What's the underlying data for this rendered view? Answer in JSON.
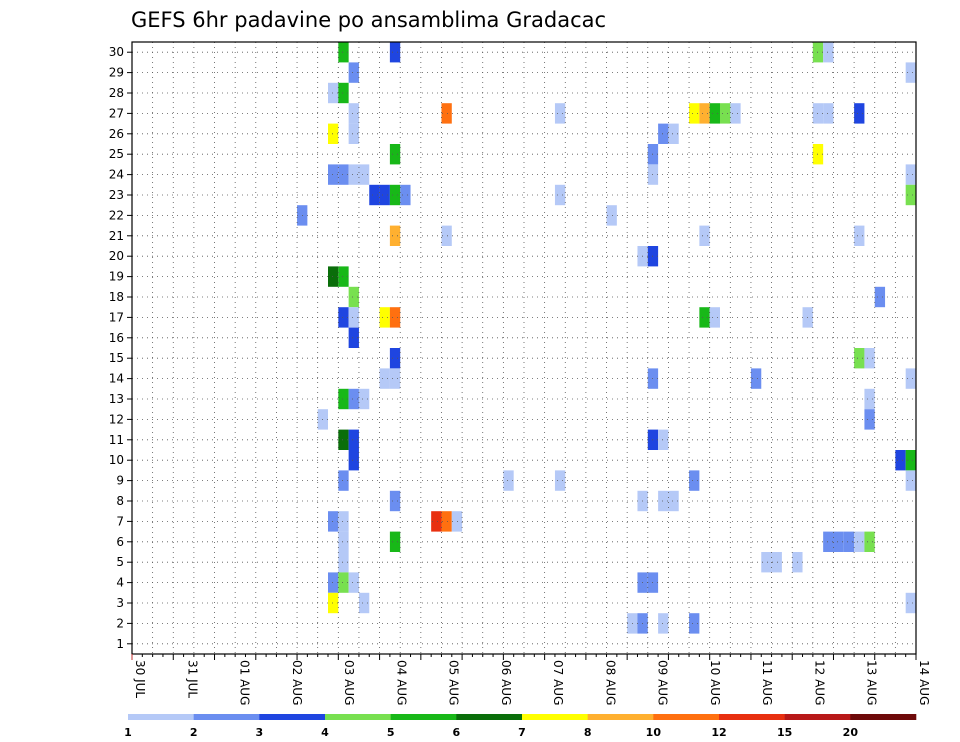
{
  "chart_data": {
    "type": "heatmap",
    "title": "GEFS 6hr padavine po ansamblima Gradacac",
    "x_labels": [
      "30 JUL",
      "31 JUL",
      "01 AUG",
      "02 AUG",
      "03 AUG",
      "04 AUG",
      "05 AUG",
      "06 AUG",
      "07 AUG",
      "08 AUG",
      "09 AUG",
      "10 AUG",
      "11 AUG",
      "12 AUG",
      "13 AUG",
      "14 AUG"
    ],
    "y_labels": [
      "1",
      "2",
      "3",
      "4",
      "5",
      "6",
      "7",
      "8",
      "9",
      "10",
      "11",
      "12",
      "13",
      "14",
      "15",
      "16",
      "17",
      "18",
      "19",
      "20",
      "21",
      "22",
      "23",
      "24",
      "25",
      "26",
      "27",
      "28",
      "29",
      "30"
    ],
    "colorbar": {
      "ticks": [
        "1",
        "2",
        "3",
        "4",
        "5",
        "6",
        "7",
        "8",
        "10",
        "12",
        "15",
        "20"
      ],
      "colors": [
        "#b5c9f7",
        "#6b8ef0",
        "#1f45e0",
        "#78e050",
        "#18b818",
        "#0a6e0a",
        "#ffff00",
        "#ffb030",
        "#ff7010",
        "#e83010",
        "#b81818",
        "#6e0a0a"
      ]
    },
    "cells": [
      {
        "member": 30,
        "step": 40,
        "level": 5
      },
      {
        "member": 30,
        "step": 50,
        "level": 3
      },
      {
        "member": 30,
        "step": 132,
        "level": 4
      },
      {
        "member": 30,
        "step": 134,
        "level": 1
      },
      {
        "member": 29,
        "step": 42,
        "level": 2
      },
      {
        "member": 29,
        "step": 150,
        "level": 1
      },
      {
        "member": 28,
        "step": 38,
        "level": 1
      },
      {
        "member": 28,
        "step": 40,
        "level": 5
      },
      {
        "member": 27,
        "step": 42,
        "level": 1
      },
      {
        "member": 27,
        "step": 60,
        "level": 9
      },
      {
        "member": 27,
        "step": 82,
        "level": 1
      },
      {
        "member": 27,
        "step": 108,
        "level": 7
      },
      {
        "member": 27,
        "step": 110,
        "level": 8
      },
      {
        "member": 27,
        "step": 112,
        "level": 5
      },
      {
        "member": 27,
        "step": 114,
        "level": 4
      },
      {
        "member": 27,
        "step": 116,
        "level": 1
      },
      {
        "member": 27,
        "step": 132,
        "level": 1
      },
      {
        "member": 27,
        "step": 134,
        "level": 1
      },
      {
        "member": 27,
        "step": 140,
        "level": 3
      },
      {
        "member": 26,
        "step": 38,
        "level": 7
      },
      {
        "member": 26,
        "step": 42,
        "level": 1
      },
      {
        "member": 26,
        "step": 102,
        "level": 2
      },
      {
        "member": 26,
        "step": 104,
        "level": 1
      },
      {
        "member": 25,
        "step": 50,
        "level": 5
      },
      {
        "member": 25,
        "step": 100,
        "level": 2
      },
      {
        "member": 25,
        "step": 132,
        "level": 7
      },
      {
        "member": 24,
        "step": 38,
        "level": 2
      },
      {
        "member": 24,
        "step": 40,
        "level": 2
      },
      {
        "member": 24,
        "step": 42,
        "level": 1
      },
      {
        "member": 24,
        "step": 44,
        "level": 1
      },
      {
        "member": 24,
        "step": 100,
        "level": 1
      },
      {
        "member": 24,
        "step": 150,
        "level": 1
      },
      {
        "member": 23,
        "step": 46,
        "level": 3
      },
      {
        "member": 23,
        "step": 48,
        "level": 3
      },
      {
        "member": 23,
        "step": 50,
        "level": 5
      },
      {
        "member": 23,
        "step": 52,
        "level": 2
      },
      {
        "member": 23,
        "step": 82,
        "level": 1
      },
      {
        "member": 23,
        "step": 150,
        "level": 4
      },
      {
        "member": 22,
        "step": 32,
        "level": 2
      },
      {
        "member": 22,
        "step": 92,
        "level": 1
      },
      {
        "member": 21,
        "step": 50,
        "level": 8
      },
      {
        "member": 21,
        "step": 60,
        "level": 1
      },
      {
        "member": 21,
        "step": 110,
        "level": 1
      },
      {
        "member": 21,
        "step": 140,
        "level": 1
      },
      {
        "member": 20,
        "step": 98,
        "level": 1
      },
      {
        "member": 20,
        "step": 100,
        "level": 3
      },
      {
        "member": 19,
        "step": 38,
        "level": 6
      },
      {
        "member": 19,
        "step": 40,
        "level": 5
      },
      {
        "member": 18,
        "step": 42,
        "level": 4
      },
      {
        "member": 18,
        "step": 144,
        "level": 2
      },
      {
        "member": 17,
        "step": 40,
        "level": 3
      },
      {
        "member": 17,
        "step": 42,
        "level": 1
      },
      {
        "member": 17,
        "step": 48,
        "level": 7
      },
      {
        "member": 17,
        "step": 50,
        "level": 9
      },
      {
        "member": 17,
        "step": 110,
        "level": 5
      },
      {
        "member": 17,
        "step": 112,
        "level": 1
      },
      {
        "member": 17,
        "step": 130,
        "level": 1
      },
      {
        "member": 16,
        "step": 42,
        "level": 3
      },
      {
        "member": 15,
        "step": 50,
        "level": 3
      },
      {
        "member": 15,
        "step": 140,
        "level": 4
      },
      {
        "member": 15,
        "step": 142,
        "level": 1
      },
      {
        "member": 14,
        "step": 48,
        "level": 1
      },
      {
        "member": 14,
        "step": 50,
        "level": 1
      },
      {
        "member": 14,
        "step": 100,
        "level": 2
      },
      {
        "member": 14,
        "step": 120,
        "level": 2
      },
      {
        "member": 14,
        "step": 150,
        "level": 1
      },
      {
        "member": 13,
        "step": 40,
        "level": 5
      },
      {
        "member": 13,
        "step": 42,
        "level": 2
      },
      {
        "member": 13,
        "step": 44,
        "level": 1
      },
      {
        "member": 13,
        "step": 142,
        "level": 1
      },
      {
        "member": 12,
        "step": 36,
        "level": 1
      },
      {
        "member": 12,
        "step": 142,
        "level": 2
      },
      {
        "member": 11,
        "step": 40,
        "level": 6
      },
      {
        "member": 11,
        "step": 42,
        "level": 3
      },
      {
        "member": 11,
        "step": 100,
        "level": 3
      },
      {
        "member": 11,
        "step": 102,
        "level": 1
      },
      {
        "member": 10,
        "step": 42,
        "level": 3
      },
      {
        "member": 10,
        "step": 148,
        "level": 3
      },
      {
        "member": 10,
        "step": 150,
        "level": 5
      },
      {
        "member": 9,
        "step": 40,
        "level": 2
      },
      {
        "member": 9,
        "step": 72,
        "level": 1
      },
      {
        "member": 9,
        "step": 82,
        "level": 1
      },
      {
        "member": 9,
        "step": 108,
        "level": 2
      },
      {
        "member": 9,
        "step": 150,
        "level": 1
      },
      {
        "member": 8,
        "step": 50,
        "level": 2
      },
      {
        "member": 8,
        "step": 98,
        "level": 1
      },
      {
        "member": 8,
        "step": 102,
        "level": 1
      },
      {
        "member": 8,
        "step": 104,
        "level": 1
      },
      {
        "member": 7,
        "step": 38,
        "level": 2
      },
      {
        "member": 7,
        "step": 40,
        "level": 1
      },
      {
        "member": 7,
        "step": 58,
        "level": 10
      },
      {
        "member": 7,
        "step": 60,
        "level": 9
      },
      {
        "member": 7,
        "step": 62,
        "level": 1
      },
      {
        "member": 6,
        "step": 40,
        "level": 1
      },
      {
        "member": 6,
        "step": 50,
        "level": 5
      },
      {
        "member": 6,
        "step": 134,
        "level": 2
      },
      {
        "member": 6,
        "step": 136,
        "level": 2
      },
      {
        "member": 6,
        "step": 138,
        "level": 2
      },
      {
        "member": 6,
        "step": 140,
        "level": 1
      },
      {
        "member": 6,
        "step": 142,
        "level": 4
      },
      {
        "member": 5,
        "step": 40,
        "level": 1
      },
      {
        "member": 5,
        "step": 122,
        "level": 1
      },
      {
        "member": 5,
        "step": 124,
        "level": 1
      },
      {
        "member": 5,
        "step": 128,
        "level": 1
      },
      {
        "member": 4,
        "step": 38,
        "level": 2
      },
      {
        "member": 4,
        "step": 40,
        "level": 4
      },
      {
        "member": 4,
        "step": 42,
        "level": 1
      },
      {
        "member": 4,
        "step": 98,
        "level": 2
      },
      {
        "member": 4,
        "step": 100,
        "level": 2
      },
      {
        "member": 3,
        "step": 38,
        "level": 7
      },
      {
        "member": 3,
        "step": 44,
        "level": 1
      },
      {
        "member": 3,
        "step": 150,
        "level": 1
      },
      {
        "member": 2,
        "step": 96,
        "level": 1
      },
      {
        "member": 2,
        "step": 98,
        "level": 2
      },
      {
        "member": 2,
        "step": 102,
        "level": 1
      },
      {
        "member": 2,
        "step": 108,
        "level": 2
      }
    ]
  }
}
